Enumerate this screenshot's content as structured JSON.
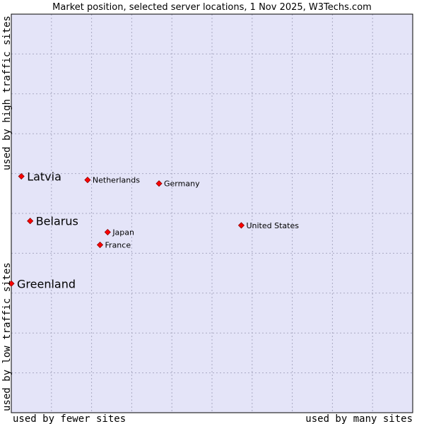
{
  "chart_data": {
    "type": "scatter",
    "title": "Market position, selected server locations, 1 Nov 2025, W3Techs.com",
    "xlabel_left": "used by fewer sites",
    "xlabel_right": "used by many sites",
    "ylabel_bottom": "used by low traffic sites",
    "ylabel_top": "used by high traffic sites",
    "xlim": [
      0,
      100
    ],
    "ylim": [
      0,
      100
    ],
    "grid": true,
    "colors": {
      "plot_background": "#e4e4f8",
      "grid": "#a9a9c2",
      "border": "#000000",
      "marker": "#ff0000",
      "marker_edge": "#8b0000"
    },
    "points": [
      {
        "name": "Latvia",
        "x": 2.5,
        "y": 59.3,
        "size": "large"
      },
      {
        "name": "Netherlands",
        "x": 19.0,
        "y": 58.4,
        "size": "small"
      },
      {
        "name": "Germany",
        "x": 36.8,
        "y": 57.5,
        "size": "small"
      },
      {
        "name": "Belarus",
        "x": 4.7,
        "y": 48.1,
        "size": "large"
      },
      {
        "name": "Japan",
        "x": 24.0,
        "y": 45.3,
        "size": "small"
      },
      {
        "name": "France",
        "x": 22.1,
        "y": 42.1,
        "size": "small"
      },
      {
        "name": "United States",
        "x": 57.3,
        "y": 47.0,
        "size": "small"
      },
      {
        "name": "Greenland",
        "x": 0.0,
        "y": 32.4,
        "size": "large"
      }
    ]
  }
}
